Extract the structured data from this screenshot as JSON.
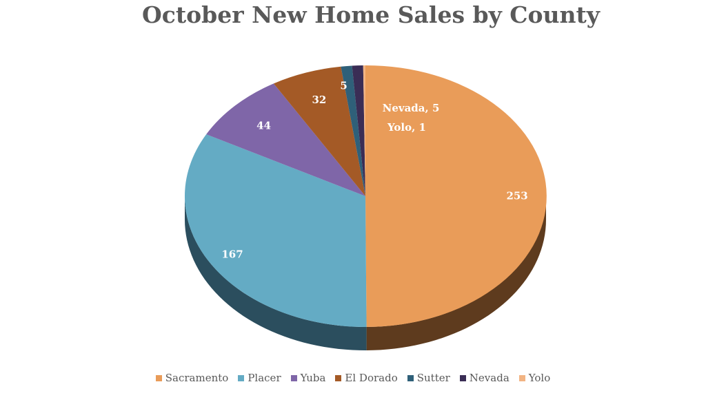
{
  "chart_data": {
    "type": "pie",
    "title": "October New Home Sales by County",
    "categories": [
      "Sacramento",
      "Placer",
      "Yuba",
      "El Dorado",
      "Sutter",
      "Nevada",
      "Yolo"
    ],
    "values": [
      253,
      167,
      44,
      32,
      5,
      5,
      1
    ],
    "colors": [
      "#E99C59",
      "#64ABC4",
      "#7F66A8",
      "#A45A26",
      "#2F6079",
      "#3A2D55",
      "#F2B483"
    ],
    "side_colors": [
      "#5E3B1E",
      "#2B4E5E",
      "#4A3968",
      "#5E3314",
      "#1E3E4E",
      "#241B36",
      "#8E6A4A"
    ],
    "data_labels": [
      {
        "category": "Sacramento",
        "text": "253"
      },
      {
        "category": "Placer",
        "text": "167"
      },
      {
        "category": "Yuba",
        "text": "44"
      },
      {
        "category": "El Dorado",
        "text": "32"
      },
      {
        "category": "Sutter",
        "text": "5"
      },
      {
        "category": "Nevada",
        "text": "Nevada, 5"
      },
      {
        "category": "Yolo",
        "text": "Yolo, 1"
      }
    ],
    "legend_position": "bottom",
    "style": "3d"
  }
}
